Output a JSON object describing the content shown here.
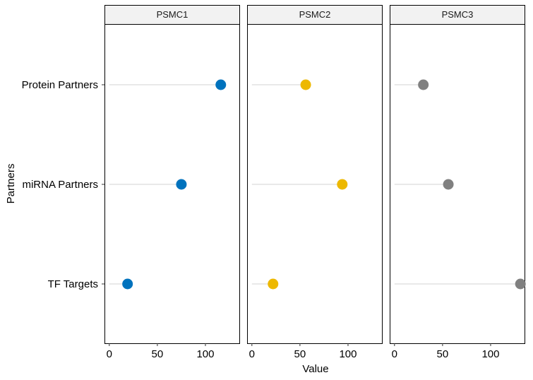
{
  "chart_data": {
    "type": "lollipop",
    "ylabel": "Partners",
    "xlabel": "Value",
    "categories": [
      "Protein Partners",
      "miRNA Partners",
      "TF Targets"
    ],
    "x_ticks": [
      0,
      50,
      100
    ],
    "xlim": [
      -5,
      136
    ],
    "grid": false,
    "legend": "none",
    "panels": [
      {
        "name": "PSMC1",
        "color": "#0072BD",
        "values": [
          116,
          75,
          19
        ]
      },
      {
        "name": "PSMC2",
        "color": "#EDB800",
        "values": [
          56,
          94,
          22
        ]
      },
      {
        "name": "PSMC3",
        "color": "#808080",
        "values": [
          30,
          56,
          131
        ]
      }
    ]
  }
}
